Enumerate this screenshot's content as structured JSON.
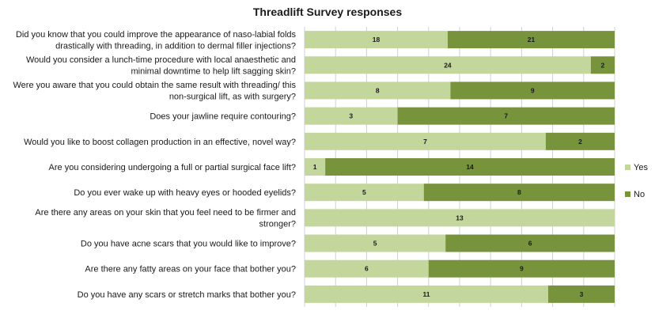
{
  "chart_data": {
    "type": "bar",
    "orientation": "horizontal",
    "stacking": "percent",
    "title": "Threadlift Survey responses",
    "categories": [
      [
        "Did you know that you could improve the appearance of naso-labial folds",
        "drastically with threading, in addition to dermal filler injections?"
      ],
      [
        "Would you consider a lunch-time procedure with local anaesthetic and",
        "minimal downtime to help lift sagging skin?"
      ],
      [
        "Were you aware that you could obtain the same result with threading/ this",
        "non-surgical lift, as with surgery?"
      ],
      [
        "Does your jawline require contouring?"
      ],
      [
        "Would you like to boost collagen production in an effective, novel way?"
      ],
      [
        "Are you considering undergoing a full or partial surgical face lift?"
      ],
      [
        "Do you ever wake up with heavy eyes or hooded eyelids?"
      ],
      [
        "Are there any areas on your skin that you feel need to be firmer and",
        "stronger?"
      ],
      [
        "Do you have acne scars that you would like to improve?"
      ],
      [
        "Are there any fatty areas on your face that bother you?"
      ],
      [
        "Do you have any scars or stretch marks that bother you?"
      ]
    ],
    "series": [
      {
        "name": "Yes",
        "color": "#c3d69b",
        "values": [
          18,
          24,
          8,
          3,
          7,
          1,
          5,
          13,
          5,
          6,
          11
        ]
      },
      {
        "name": "No",
        "color": "#77933c",
        "values": [
          21,
          2,
          9,
          7,
          2,
          14,
          8,
          0,
          6,
          9,
          3
        ]
      }
    ],
    "legend": "right",
    "grid": "vertical"
  }
}
